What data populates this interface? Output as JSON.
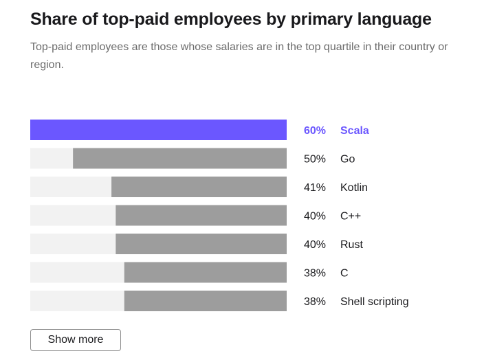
{
  "header": {
    "title": "Share of top-paid employees by primary language",
    "subtitle": "Top-paid employees are those whose salaries are in the top quartile in their country or region."
  },
  "actions": {
    "show_more_label": "Show more"
  },
  "colors": {
    "highlight": "#6b57ff",
    "bar": "#9d9d9d",
    "track": "#f2f2f2",
    "text": "#19191c"
  },
  "chart_data": {
    "type": "bar",
    "orientation": "horizontal",
    "title": "Share of top-paid employees by primary language",
    "categories": [
      "Scala",
      "Go",
      "Kotlin",
      "C++",
      "Rust",
      "C",
      "Shell scripting"
    ],
    "values": [
      60,
      50,
      41,
      40,
      40,
      38,
      38
    ],
    "value_labels": [
      "60%",
      "50%",
      "41%",
      "40%",
      "40%",
      "38%",
      "38%"
    ],
    "highlighted": "Scala",
    "unit": "%",
    "xlim": [
      0,
      60
    ],
    "bars_anchored": "right",
    "xlabel": "",
    "ylabel": ""
  }
}
